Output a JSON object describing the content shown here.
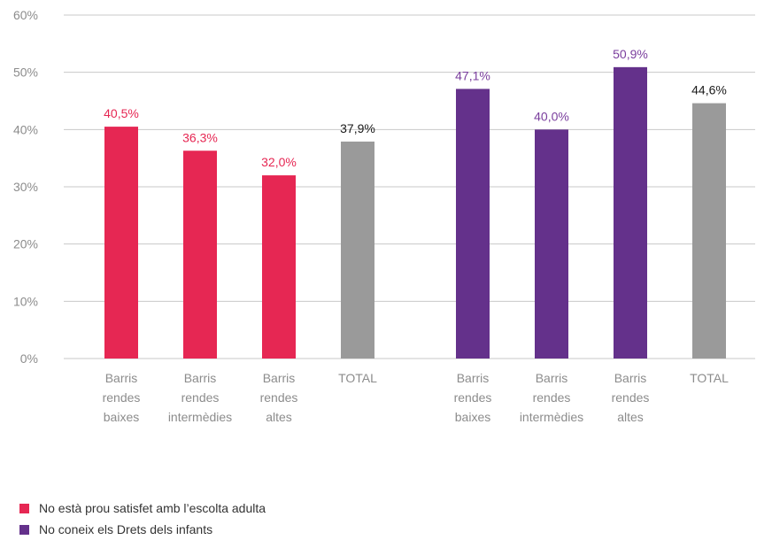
{
  "chart_data": {
    "type": "bar",
    "title": "",
    "xlabel": "",
    "ylabel": "",
    "ylim": [
      0,
      60
    ],
    "y_ticks": [
      0,
      10,
      20,
      30,
      40,
      50,
      60
    ],
    "y_tick_labels": [
      "0%",
      "10%",
      "20%",
      "30%",
      "40%",
      "50%",
      "60%"
    ],
    "grid": true,
    "legend_position": "bottom-left",
    "categories": [
      "Barris rendes baixes",
      "Barris rendes intermèdies",
      "Barris rendes altes",
      "TOTAL",
      "Barris rendes baixes",
      "Barris rendes intermèdies",
      "Barris rendes altes",
      "TOTAL"
    ],
    "groups": [
      {
        "series_name": "No està prou satisfet amb l’escolta adulta",
        "bar_color": "#E62753",
        "bars": [
          {
            "label_lines": [
              "Barris",
              "rendes",
              "baixes"
            ],
            "value": 40.5,
            "value_label": "40,5%",
            "color": "#E62753",
            "label_color": "#E62753"
          },
          {
            "label_lines": [
              "Barris",
              "rendes",
              "intermèdies"
            ],
            "value": 36.3,
            "value_label": "36,3%",
            "color": "#E62753",
            "label_color": "#E62753"
          },
          {
            "label_lines": [
              "Barris",
              "rendes",
              "altes"
            ],
            "value": 32.0,
            "value_label": "32,0%",
            "color": "#E62753",
            "label_color": "#E62753"
          },
          {
            "label_lines": [
              "TOTAL"
            ],
            "value": 37.9,
            "value_label": "37,9%",
            "color": "#9A9A9A",
            "label_color": "#1A1A1A"
          }
        ]
      },
      {
        "series_name": "No coneix els Drets dels infants",
        "bar_color": "#64318B",
        "bars": [
          {
            "label_lines": [
              "Barris",
              "rendes",
              "baixes"
            ],
            "value": 47.1,
            "value_label": "47,1%",
            "color": "#64318B",
            "label_color": "#7A3E9D"
          },
          {
            "label_lines": [
              "Barris",
              "rendes",
              "intermèdies"
            ],
            "value": 40.0,
            "value_label": "40,0%",
            "color": "#64318B",
            "label_color": "#7A3E9D"
          },
          {
            "label_lines": [
              "Barris",
              "rendes",
              "altes"
            ],
            "value": 50.9,
            "value_label": "50,9%",
            "color": "#64318B",
            "label_color": "#7A3E9D"
          },
          {
            "label_lines": [
              "TOTAL"
            ],
            "value": 44.6,
            "value_label": "44,6%",
            "color": "#9A9A9A",
            "label_color": "#1A1A1A"
          }
        ]
      }
    ],
    "legend": [
      {
        "label": "No està prou satisfet amb l’escolta adulta",
        "color": "#E62753"
      },
      {
        "label": "No coneix els Drets dels infants",
        "color": "#64318B"
      }
    ],
    "colors": {
      "grid": "#C8C8C8",
      "axis_text": "#8C8C8C",
      "category_text": "#8C8C8C"
    }
  }
}
